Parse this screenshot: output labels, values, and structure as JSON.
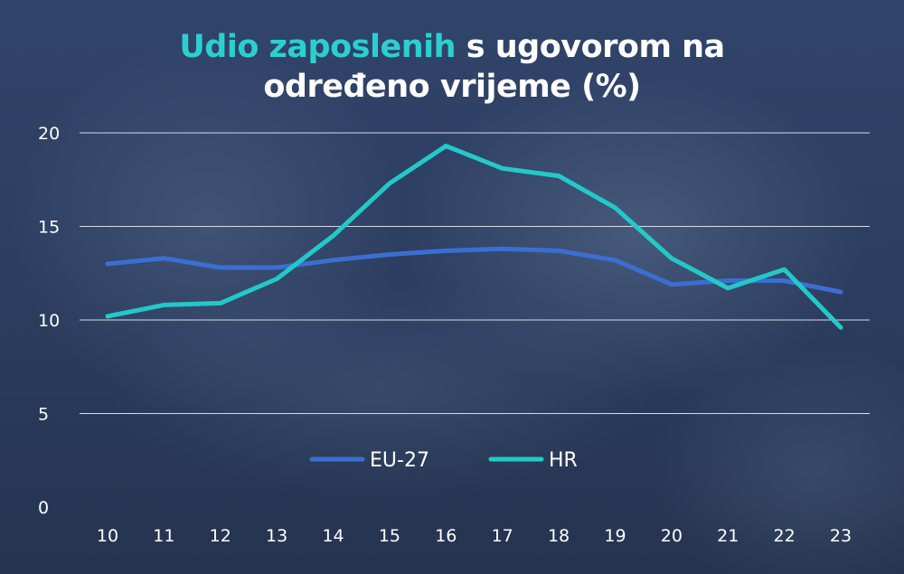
{
  "title": {
    "highlight": "Udio zaposlenih",
    "rest_line1": " s ugovorom na",
    "line2": "određeno vrijeme (%)"
  },
  "colors": {
    "EU-27": "#3a6fd1",
    "HR": "#22c9c9",
    "title_accent": "#2bcfcf",
    "grid": "#d7dbe4"
  },
  "chart_data": {
    "type": "line",
    "x": [
      "10",
      "11",
      "12",
      "13",
      "14",
      "15",
      "16",
      "17",
      "18",
      "19",
      "20",
      "21",
      "22",
      "23"
    ],
    "ylim": [
      0,
      20
    ],
    "yticks": [
      0,
      5,
      10,
      15,
      20
    ],
    "grid": true,
    "legend_position": "bottom-center",
    "series": [
      {
        "name": "EU-27",
        "values": [
          13.0,
          13.3,
          12.8,
          12.8,
          13.2,
          13.5,
          13.7,
          13.8,
          13.7,
          13.2,
          11.9,
          12.1,
          12.1,
          11.5
        ]
      },
      {
        "name": "HR",
        "values": [
          10.2,
          10.8,
          10.9,
          12.2,
          14.5,
          17.3,
          19.3,
          18.1,
          17.7,
          16.0,
          13.3,
          11.7,
          12.7,
          9.6
        ]
      }
    ]
  }
}
